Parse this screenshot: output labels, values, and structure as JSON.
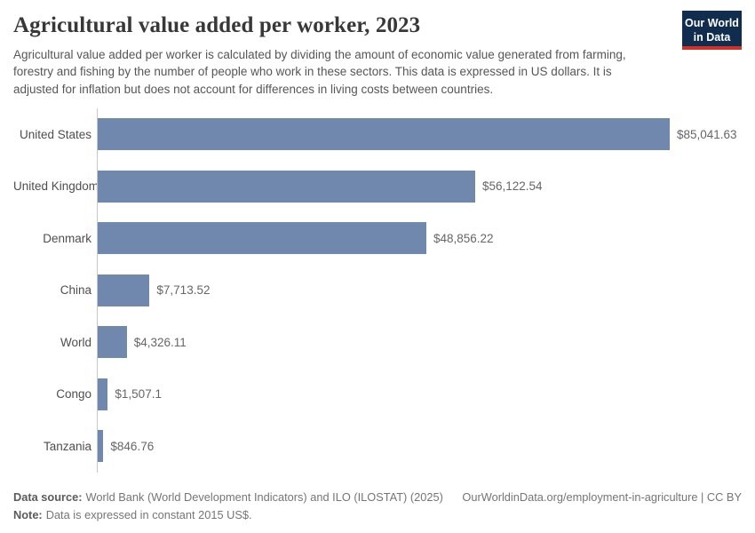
{
  "header": {
    "title": "Agricultural value added per worker, 2023",
    "subtitle": "Agricultural value added per worker is calculated by dividing the amount of economic value generated from farming, forestry and fishing by the number of people who work in these sectors. This data is expressed in US dollars. It is adjusted for inflation but does not account for differences in living costs between countries.",
    "logo": {
      "line1": "Our World",
      "line2": "in Data",
      "bg_color": "#102d50",
      "accent_color": "#cf3129",
      "text_color": "#ffffff"
    }
  },
  "chart_data": {
    "type": "bar",
    "orientation": "horizontal",
    "title": "Agricultural value added per worker, 2023",
    "categories": [
      "United States",
      "United Kingdom",
      "Denmark",
      "China",
      "World",
      "Congo",
      "Tanzania"
    ],
    "values": [
      85041.63,
      56122.54,
      48856.22,
      7713.52,
      4326.11,
      1507.1,
      846.76
    ],
    "value_labels": [
      "$85,041.63",
      "$56,122.54",
      "$48,856.22",
      "$7,713.52",
      "$4,326.11",
      "$1,507.1",
      "$846.76"
    ],
    "xlim": [
      0,
      85041.63
    ],
    "bar_color": "#7088ae",
    "axis_line_color": "#c8c8c8",
    "grid": false,
    "legend": "none"
  },
  "footer": {
    "source_label": "Data source:",
    "source_text": "World Bank (World Development Indicators) and ILO (ILOSTAT) (2025)",
    "link_text": "OurWorldinData.org/employment-in-agriculture | CC BY",
    "note_label": "Note:",
    "note_text": "Data is expressed in constant 2015 US$."
  }
}
